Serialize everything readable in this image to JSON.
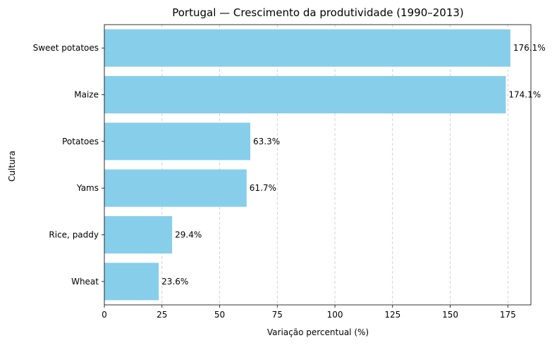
{
  "chart_data": {
    "type": "bar",
    "orientation": "horizontal",
    "title": "Portugal — Crescimento da produtividade (1990–2013)",
    "xlabel": "Variação percentual (%)",
    "ylabel": "Cultura",
    "categories": [
      "Sweet potatoes",
      "Maize",
      "Potatoes",
      "Yams",
      "Rice, paddy",
      "Wheat"
    ],
    "values": [
      176.1,
      174.1,
      63.3,
      61.7,
      29.4,
      23.6
    ],
    "value_labels": [
      "176.1%",
      "174.1%",
      "63.3%",
      "61.7%",
      "29.4%",
      "23.6%"
    ],
    "xlim": [
      0,
      185
    ],
    "xticks": [
      0,
      25,
      50,
      75,
      100,
      125,
      150,
      175
    ],
    "xtick_labels": [
      "0",
      "25",
      "50",
      "75",
      "100",
      "125",
      "150",
      "175"
    ],
    "grid": "x-dashed",
    "bar_color": "#87CEEB",
    "grid_color": "#c8c8c8"
  }
}
